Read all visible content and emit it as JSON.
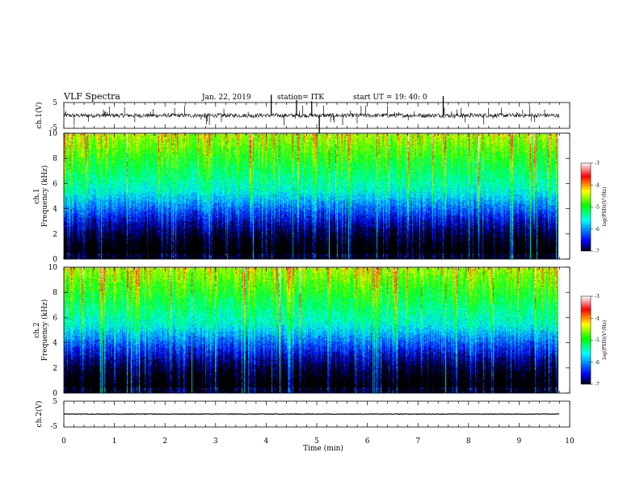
{
  "header": {
    "title": "VLF Spectra",
    "date": "Jan. 22, 2019",
    "station": "station= ITK",
    "start": "start UT = 19: 40: 0"
  },
  "colors": {
    "waveform": "#000000",
    "spectrogram_bg": "#000000",
    "colormap": [
      "#000000",
      "#0000ff",
      "#00ffff",
      "#00ff00",
      "#ffff00",
      "#ff0000",
      "#ffffff"
    ]
  },
  "chart_data": [
    {
      "type": "line",
      "ylabel": "ch.1(V)",
      "ylim": [
        -5,
        5
      ],
      "yticks": [
        "5",
        "-5"
      ],
      "xlim": [
        0,
        10
      ],
      "description_values": {
        "baseline": 0,
        "noise_amplitude": 0.8
      }
    },
    {
      "type": "heatmap",
      "ylabel_top": "ch.1",
      "ylabel": "Frequency (kHz)",
      "ylim": [
        0,
        10
      ],
      "yticks": [
        "0",
        "2",
        "4",
        "6",
        "8",
        "10"
      ],
      "xlim": [
        0,
        10
      ],
      "colorbar": {
        "label": "log(PSD)(V²/Hz)",
        "range": [
          -7,
          -3
        ],
        "ticks": [
          "-3",
          "-4",
          "-5",
          "-6",
          "-7"
        ]
      }
    },
    {
      "type": "heatmap",
      "ylabel_top": "ch.2",
      "ylabel": "Frequency (kHz)",
      "ylim": [
        0,
        10
      ],
      "yticks": [
        "0",
        "2",
        "4",
        "6",
        "8",
        "10"
      ],
      "xlim": [
        0,
        10
      ],
      "colorbar": {
        "label": "log(PSD)(V²/Hz)",
        "range": [
          -7,
          -3
        ],
        "ticks": [
          "-3",
          "-4",
          "-5",
          "-6",
          "-7"
        ]
      }
    },
    {
      "type": "line",
      "ylabel": "ch.2(V)",
      "ylim": [
        -5,
        5
      ],
      "yticks": [
        "5",
        "-5"
      ],
      "xlim": [
        0,
        10
      ],
      "description_values": {
        "baseline": 0,
        "noise_amplitude": 0.1
      }
    }
  ],
  "xaxis": {
    "label": "Time (min)",
    "ticks": [
      "0",
      "1",
      "2",
      "3",
      "4",
      "5",
      "6",
      "7",
      "8",
      "9",
      "10"
    ],
    "data_end": 9.8
  }
}
